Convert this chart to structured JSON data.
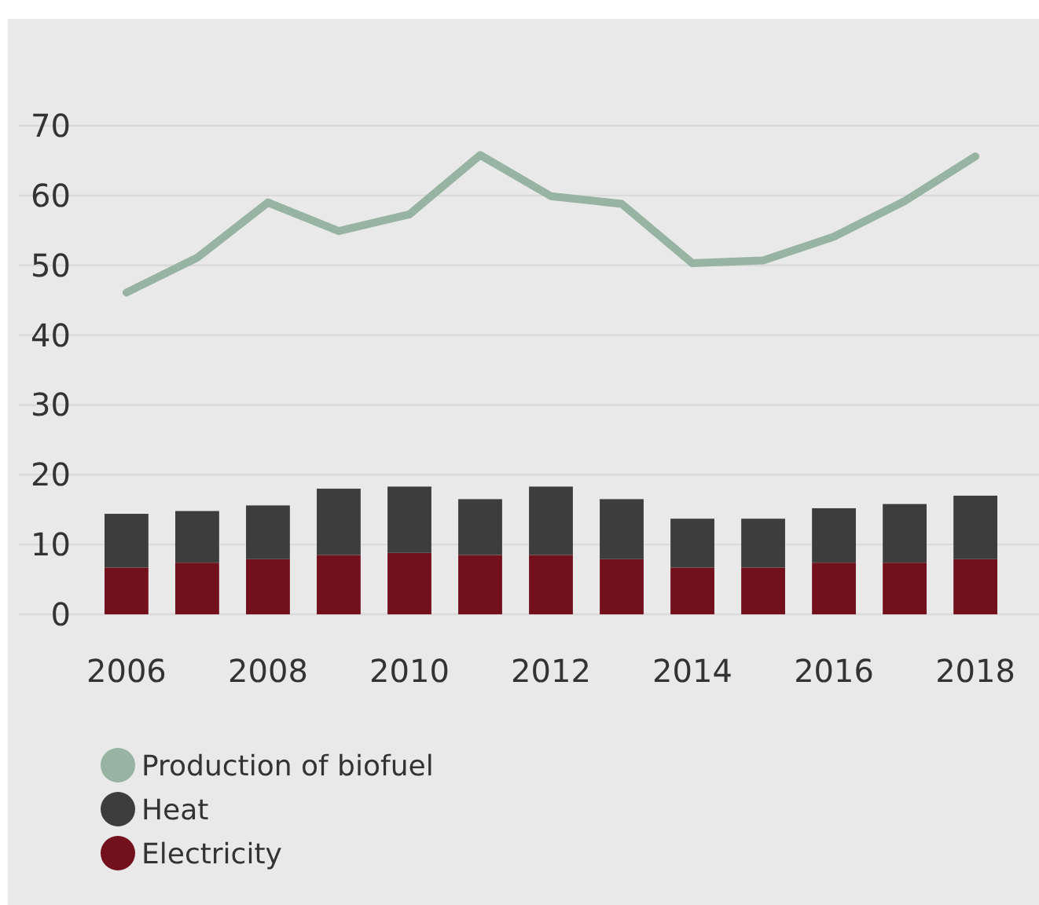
{
  "chart_data": {
    "type": "bar",
    "stacked": true,
    "categories": [
      "2006",
      null,
      "2008",
      null,
      "2010",
      null,
      "2012",
      null,
      "2014",
      null,
      "2016",
      null,
      "2018"
    ],
    "series": [
      {
        "name": "Electricity",
        "color": "#72101c",
        "values": [
          6.7,
          7.4,
          7.9,
          8.5,
          8.8,
          8.5,
          8.5,
          7.9,
          6.7,
          6.7,
          7.4,
          7.4,
          7.9
        ]
      },
      {
        "name": "Heat",
        "color": "#3d3d3d",
        "values": [
          7.7,
          7.4,
          7.7,
          9.5,
          9.5,
          8.0,
          9.8,
          8.6,
          7.0,
          7.0,
          7.8,
          8.4,
          9.1
        ]
      },
      {
        "name": "Production of biofuel",
        "type": "line",
        "color": "#97b3a1",
        "values": [
          46.1,
          51.1,
          59.0,
          54.9,
          57.3,
          65.8,
          59.9,
          58.8,
          50.3,
          50.7,
          54.1,
          59.2,
          65.6
        ]
      }
    ],
    "ylim": [
      0,
      70
    ],
    "yticks": [
      0,
      10,
      20,
      30,
      40,
      50,
      60,
      70
    ],
    "grid": "y",
    "legend": "bottom"
  }
}
